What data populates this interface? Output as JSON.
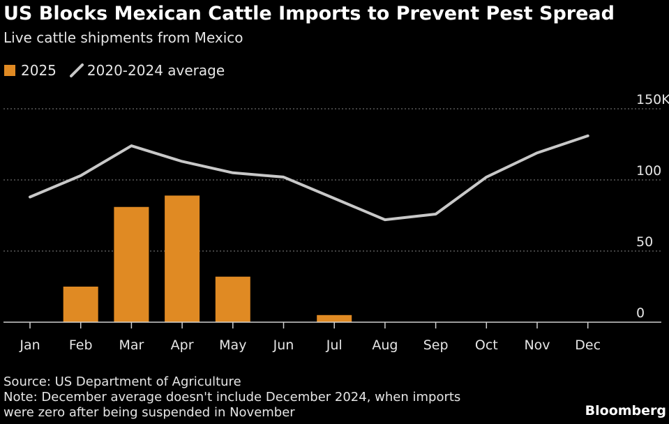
{
  "title": "US Blocks Mexican Cattle Imports to Prevent Pest Spread",
  "subtitle": "Live cattle shipments from Mexico",
  "source": "Source: US Department of Agriculture",
  "note_line1": "Note: December average doesn't include December 2024, when imports",
  "note_line2": "were zero after being suspended in November",
  "brand": "Bloomberg",
  "colors": {
    "background": "#000000",
    "bar": "#e08a23",
    "line": "#c8c8c8",
    "grid": "#6e6e6e",
    "text": "#e6e6e6"
  },
  "chart_data": {
    "type": "bar",
    "categories": [
      "Jan",
      "Feb",
      "Mar",
      "Apr",
      "May",
      "Jun",
      "Jul",
      "Aug",
      "Sep",
      "Oct",
      "Nov",
      "Dec"
    ],
    "series": [
      {
        "name": "2025",
        "type": "bar",
        "values": [
          0,
          25,
          81,
          89,
          32,
          0,
          5,
          0,
          0,
          0,
          0,
          0
        ]
      },
      {
        "name": "2020-2024 average",
        "type": "line",
        "values": [
          88,
          103,
          124,
          113,
          105,
          102,
          87,
          72,
          76,
          102,
          119,
          131
        ]
      }
    ],
    "y_ticks": [
      0,
      50,
      100,
      150
    ],
    "y_tick_labels": [
      "0",
      "50",
      "100",
      "150K"
    ],
    "ylim": [
      0,
      150
    ],
    "grid": true,
    "legend": "top-left"
  }
}
